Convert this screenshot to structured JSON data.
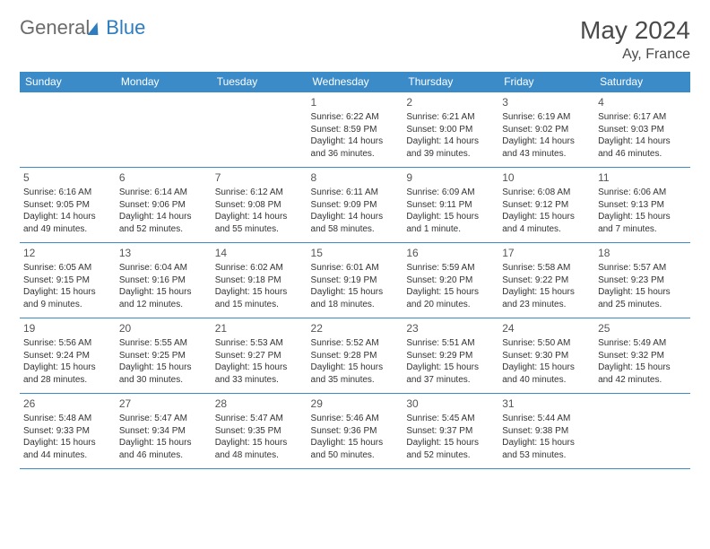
{
  "brand": {
    "part1": "General",
    "part2": "Blue"
  },
  "title": "May 2024",
  "location": "Ay, France",
  "colors": {
    "header_bg": "#3b8bc9",
    "header_text": "#ffffff",
    "border": "#3b8bc9",
    "logo_gray": "#6b6b6b",
    "logo_blue": "#2d7dc0",
    "title_color": "#4a4a4a"
  },
  "weekdays": [
    "Sunday",
    "Monday",
    "Tuesday",
    "Wednesday",
    "Thursday",
    "Friday",
    "Saturday"
  ],
  "weeks": [
    [
      null,
      null,
      null,
      {
        "n": "1",
        "sr": "Sunrise: 6:22 AM",
        "ss": "Sunset: 8:59 PM",
        "d1": "Daylight: 14 hours",
        "d2": "and 36 minutes."
      },
      {
        "n": "2",
        "sr": "Sunrise: 6:21 AM",
        "ss": "Sunset: 9:00 PM",
        "d1": "Daylight: 14 hours",
        "d2": "and 39 minutes."
      },
      {
        "n": "3",
        "sr": "Sunrise: 6:19 AM",
        "ss": "Sunset: 9:02 PM",
        "d1": "Daylight: 14 hours",
        "d2": "and 43 minutes."
      },
      {
        "n": "4",
        "sr": "Sunrise: 6:17 AM",
        "ss": "Sunset: 9:03 PM",
        "d1": "Daylight: 14 hours",
        "d2": "and 46 minutes."
      }
    ],
    [
      {
        "n": "5",
        "sr": "Sunrise: 6:16 AM",
        "ss": "Sunset: 9:05 PM",
        "d1": "Daylight: 14 hours",
        "d2": "and 49 minutes."
      },
      {
        "n": "6",
        "sr": "Sunrise: 6:14 AM",
        "ss": "Sunset: 9:06 PM",
        "d1": "Daylight: 14 hours",
        "d2": "and 52 minutes."
      },
      {
        "n": "7",
        "sr": "Sunrise: 6:12 AM",
        "ss": "Sunset: 9:08 PM",
        "d1": "Daylight: 14 hours",
        "d2": "and 55 minutes."
      },
      {
        "n": "8",
        "sr": "Sunrise: 6:11 AM",
        "ss": "Sunset: 9:09 PM",
        "d1": "Daylight: 14 hours",
        "d2": "and 58 minutes."
      },
      {
        "n": "9",
        "sr": "Sunrise: 6:09 AM",
        "ss": "Sunset: 9:11 PM",
        "d1": "Daylight: 15 hours",
        "d2": "and 1 minute."
      },
      {
        "n": "10",
        "sr": "Sunrise: 6:08 AM",
        "ss": "Sunset: 9:12 PM",
        "d1": "Daylight: 15 hours",
        "d2": "and 4 minutes."
      },
      {
        "n": "11",
        "sr": "Sunrise: 6:06 AM",
        "ss": "Sunset: 9:13 PM",
        "d1": "Daylight: 15 hours",
        "d2": "and 7 minutes."
      }
    ],
    [
      {
        "n": "12",
        "sr": "Sunrise: 6:05 AM",
        "ss": "Sunset: 9:15 PM",
        "d1": "Daylight: 15 hours",
        "d2": "and 9 minutes."
      },
      {
        "n": "13",
        "sr": "Sunrise: 6:04 AM",
        "ss": "Sunset: 9:16 PM",
        "d1": "Daylight: 15 hours",
        "d2": "and 12 minutes."
      },
      {
        "n": "14",
        "sr": "Sunrise: 6:02 AM",
        "ss": "Sunset: 9:18 PM",
        "d1": "Daylight: 15 hours",
        "d2": "and 15 minutes."
      },
      {
        "n": "15",
        "sr": "Sunrise: 6:01 AM",
        "ss": "Sunset: 9:19 PM",
        "d1": "Daylight: 15 hours",
        "d2": "and 18 minutes."
      },
      {
        "n": "16",
        "sr": "Sunrise: 5:59 AM",
        "ss": "Sunset: 9:20 PM",
        "d1": "Daylight: 15 hours",
        "d2": "and 20 minutes."
      },
      {
        "n": "17",
        "sr": "Sunrise: 5:58 AM",
        "ss": "Sunset: 9:22 PM",
        "d1": "Daylight: 15 hours",
        "d2": "and 23 minutes."
      },
      {
        "n": "18",
        "sr": "Sunrise: 5:57 AM",
        "ss": "Sunset: 9:23 PM",
        "d1": "Daylight: 15 hours",
        "d2": "and 25 minutes."
      }
    ],
    [
      {
        "n": "19",
        "sr": "Sunrise: 5:56 AM",
        "ss": "Sunset: 9:24 PM",
        "d1": "Daylight: 15 hours",
        "d2": "and 28 minutes."
      },
      {
        "n": "20",
        "sr": "Sunrise: 5:55 AM",
        "ss": "Sunset: 9:25 PM",
        "d1": "Daylight: 15 hours",
        "d2": "and 30 minutes."
      },
      {
        "n": "21",
        "sr": "Sunrise: 5:53 AM",
        "ss": "Sunset: 9:27 PM",
        "d1": "Daylight: 15 hours",
        "d2": "and 33 minutes."
      },
      {
        "n": "22",
        "sr": "Sunrise: 5:52 AM",
        "ss": "Sunset: 9:28 PM",
        "d1": "Daylight: 15 hours",
        "d2": "and 35 minutes."
      },
      {
        "n": "23",
        "sr": "Sunrise: 5:51 AM",
        "ss": "Sunset: 9:29 PM",
        "d1": "Daylight: 15 hours",
        "d2": "and 37 minutes."
      },
      {
        "n": "24",
        "sr": "Sunrise: 5:50 AM",
        "ss": "Sunset: 9:30 PM",
        "d1": "Daylight: 15 hours",
        "d2": "and 40 minutes."
      },
      {
        "n": "25",
        "sr": "Sunrise: 5:49 AM",
        "ss": "Sunset: 9:32 PM",
        "d1": "Daylight: 15 hours",
        "d2": "and 42 minutes."
      }
    ],
    [
      {
        "n": "26",
        "sr": "Sunrise: 5:48 AM",
        "ss": "Sunset: 9:33 PM",
        "d1": "Daylight: 15 hours",
        "d2": "and 44 minutes."
      },
      {
        "n": "27",
        "sr": "Sunrise: 5:47 AM",
        "ss": "Sunset: 9:34 PM",
        "d1": "Daylight: 15 hours",
        "d2": "and 46 minutes."
      },
      {
        "n": "28",
        "sr": "Sunrise: 5:47 AM",
        "ss": "Sunset: 9:35 PM",
        "d1": "Daylight: 15 hours",
        "d2": "and 48 minutes."
      },
      {
        "n": "29",
        "sr": "Sunrise: 5:46 AM",
        "ss": "Sunset: 9:36 PM",
        "d1": "Daylight: 15 hours",
        "d2": "and 50 minutes."
      },
      {
        "n": "30",
        "sr": "Sunrise: 5:45 AM",
        "ss": "Sunset: 9:37 PM",
        "d1": "Daylight: 15 hours",
        "d2": "and 52 minutes."
      },
      {
        "n": "31",
        "sr": "Sunrise: 5:44 AM",
        "ss": "Sunset: 9:38 PM",
        "d1": "Daylight: 15 hours",
        "d2": "and 53 minutes."
      },
      null
    ]
  ]
}
